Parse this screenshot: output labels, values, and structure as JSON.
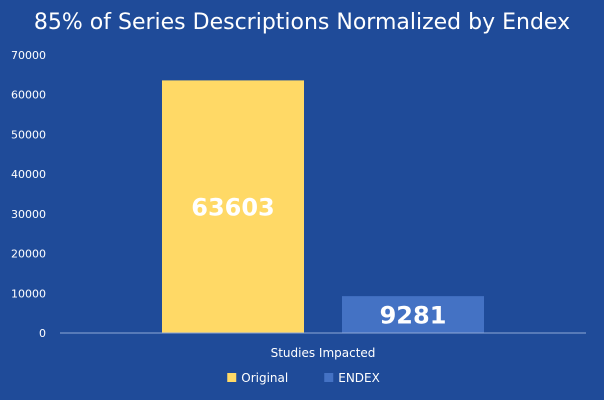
{
  "chart_data": {
    "type": "bar",
    "title": "85% of Series Descriptions Normalized by Endex",
    "categories": [
      "Studies Impacted"
    ],
    "series": [
      {
        "name": "Original",
        "values": [
          63603
        ],
        "color": "#ffd966"
      },
      {
        "name": "ENDEX",
        "values": [
          9281
        ],
        "color": "#4472c4"
      }
    ],
    "ylim": [
      0,
      70000
    ],
    "yticks": [
      0,
      10000,
      20000,
      30000,
      40000,
      50000,
      60000,
      70000
    ],
    "data_labels": true,
    "legend_position": "bottom",
    "grid": false
  },
  "colors": {
    "background": "#1f4b99",
    "text": "#ffffff",
    "axis": "#8fa8d8"
  }
}
